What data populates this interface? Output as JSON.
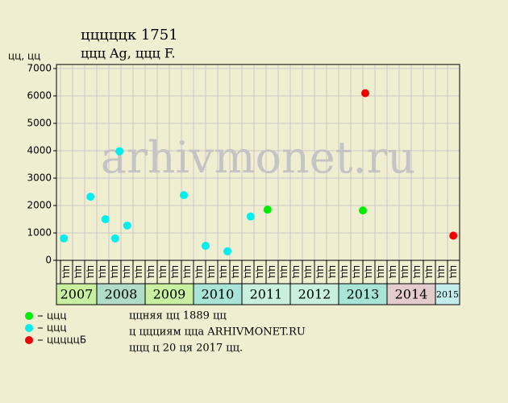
{
  "chart_data": {
    "type": "scatter",
    "title": "цццццк 1751",
    "subtitle": "ццц Ag, ццц F.",
    "y_label": "цц, цц",
    "watermark": "arhivmonet.ru",
    "xlim": [
      2007.1667,
      2015.5
    ],
    "ylim": [
      0,
      7000
    ],
    "yticks": [
      0,
      1000,
      2000,
      3000,
      4000,
      5000,
      6000,
      7000
    ],
    "grid": true,
    "years": [
      2007,
      2008,
      2009,
      2010,
      2011,
      2012,
      2013,
      2014,
      2015
    ],
    "year_colors": [
      "#c8f0a0",
      "#b0dcc8",
      "#c8f0a0",
      "#a8e4d8",
      "#c8f0dc",
      "#c8f0dc",
      "#a8e4d8",
      "#e4cccc",
      "#c4ecec"
    ],
    "column_labels": [
      "цц",
      "цц",
      "цц",
      "цц",
      "цц",
      "цц",
      "цц",
      "цц",
      "цц",
      "цц",
      "цц",
      "цц",
      "цц",
      "цц",
      "цц",
      "цц",
      "цц",
      "цц",
      "цц",
      "цц",
      "цц",
      "цц",
      "цц",
      "цц",
      "цц",
      "цц",
      "цц",
      "цц",
      "цц",
      "цц",
      "цц",
      "цц",
      "цц"
    ],
    "series": [
      {
        "name": "ццц",
        "color": "#00ee00",
        "x": [
          2011.53,
          2013.5
        ],
        "values": [
          1850,
          1820
        ]
      },
      {
        "name": "ццц",
        "color": "#00eeee",
        "x": [
          2007.32,
          2007.87,
          2008.18,
          2008.38,
          2008.47,
          2008.63,
          2009.8,
          2010.25,
          2010.7,
          2011.18
        ],
        "values": [
          800,
          2320,
          1500,
          800,
          3980,
          1270,
          2380,
          530,
          330,
          1600
        ]
      },
      {
        "name": "цццццБ",
        "color": "#ee0000",
        "x": [
          2013.55,
          2015.37
        ],
        "values": [
          6100,
          900
        ]
      }
    ],
    "notes": [
      "ццняя цц 1889 цц",
      "ц ццциям цца ARHIVMONET.RU",
      "ццц ц 20 ця 2017 цц."
    ]
  }
}
